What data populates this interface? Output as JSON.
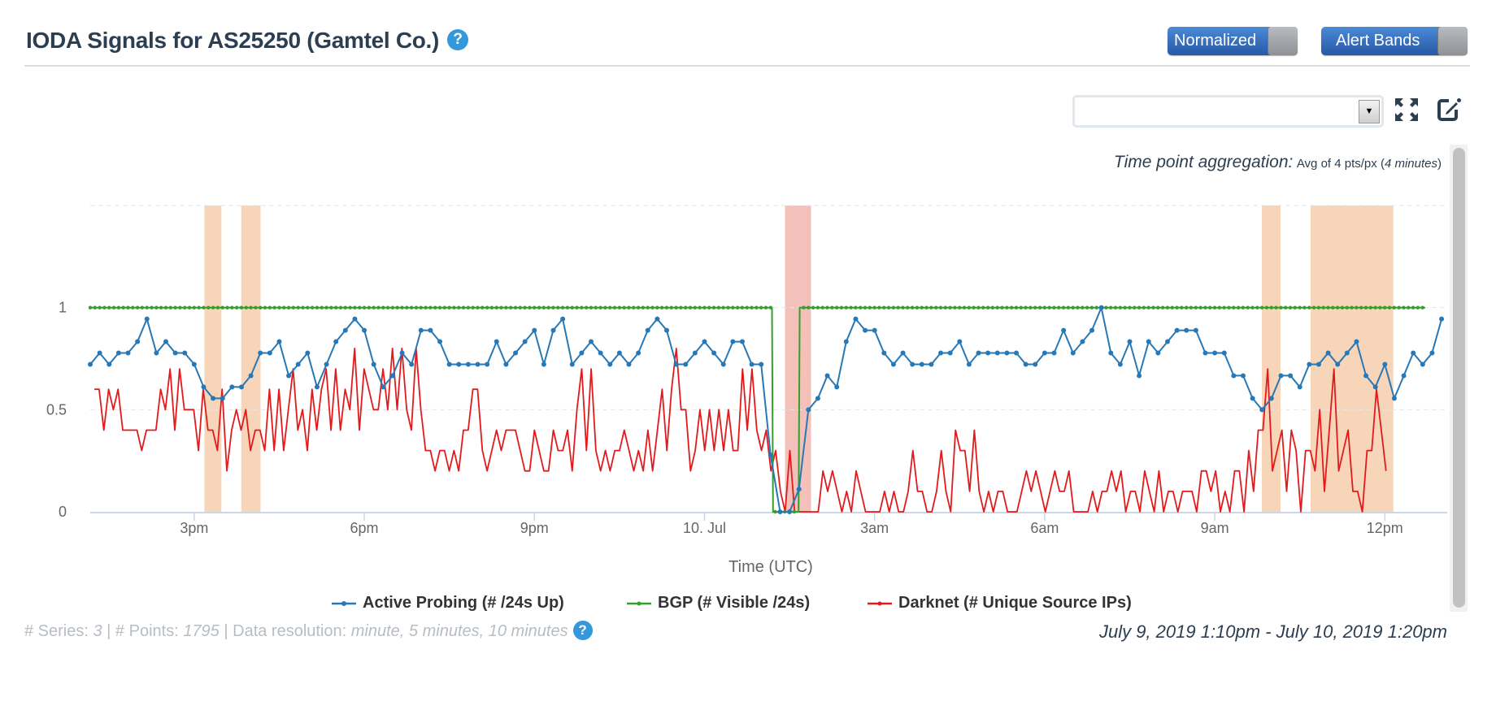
{
  "header": {
    "title": "IODA Signals for AS25250 (Gamtel Co.)",
    "help_icon": "?"
  },
  "toggles": {
    "normalized": "Normalized",
    "alert_bands": "Alert Bands"
  },
  "dropdown": {
    "value": "",
    "arrow": "▼"
  },
  "aggregation": {
    "label": "Time point aggregation:",
    "value": "Avg of 4 pts/px (",
    "minutes": "4 minutes",
    "close": ")"
  },
  "footer": {
    "series_label": "# Series: ",
    "series_count": "3",
    "sep1": " | ",
    "points_label": "# Points: ",
    "points_count": "1795",
    "sep2": " | ",
    "resolution_label": "Data resolution: ",
    "resolution_value": "minute, 5 minutes, 10 minutes",
    "date_range": "July 9, 2019 1:10pm - July 10, 2019 1:20pm"
  },
  "colors": {
    "active": "#2878b5",
    "bgp": "#33a02c",
    "darknet": "#e31a1c",
    "band_warn": "#f7d5b9",
    "band_crit": "#f4c0ba"
  },
  "chart_data": {
    "type": "line",
    "xlabel": "Time (UTC)",
    "ylabel": "",
    "x_unit": "hours since July 9, 2019 00:00 UTC",
    "xlim": [
      13.1667,
      37.1
    ],
    "ylim": [
      0,
      1.5
    ],
    "grid": true,
    "legend_position": "bottom-center",
    "yticks": [
      {
        "v": 0,
        "label": "0"
      },
      {
        "v": 0.5,
        "label": "0.5"
      },
      {
        "v": 1,
        "label": "1"
      }
    ],
    "xticks": [
      {
        "v": 15,
        "label": "3pm"
      },
      {
        "v": 18,
        "label": "6pm"
      },
      {
        "v": 21,
        "label": "9pm"
      },
      {
        "v": 24,
        "label": "10. Jul"
      },
      {
        "v": 27,
        "label": "3am"
      },
      {
        "v": 30,
        "label": "6am"
      },
      {
        "v": 33,
        "label": "9am"
      },
      {
        "v": 36,
        "label": "12pm"
      }
    ],
    "alert_bands": [
      {
        "from": 15.18,
        "to": 15.48,
        "level": "warning"
      },
      {
        "from": 15.83,
        "to": 16.17,
        "level": "warning"
      },
      {
        "from": 25.42,
        "to": 25.88,
        "level": "critical"
      },
      {
        "from": 33.83,
        "to": 34.16,
        "level": "warning"
      },
      {
        "from": 34.69,
        "to": 36.15,
        "level": "warning"
      }
    ],
    "series": [
      {
        "name": "Active Probing (# /24s Up)",
        "key": "active",
        "x_start": 13.1667,
        "x_step": 0.16667,
        "scale_divisor": 18,
        "values": [
          13,
          14,
          13,
          14,
          14,
          15,
          17,
          14,
          15,
          14,
          14,
          13,
          11,
          10,
          10,
          11,
          11,
          12,
          14,
          14,
          15,
          12,
          13,
          14,
          11,
          13,
          15,
          16,
          17,
          16,
          13,
          11,
          12,
          14,
          13,
          16,
          16,
          15,
          13,
          13,
          13,
          13,
          13,
          15,
          13,
          14,
          15,
          16,
          13,
          16,
          17,
          13,
          14,
          15,
          14,
          13,
          14,
          13,
          14,
          16,
          17,
          16,
          13,
          13,
          14,
          15,
          14,
          13,
          15,
          15,
          13,
          13,
          5,
          0,
          0,
          2,
          9,
          10,
          12,
          11,
          15,
          17,
          16,
          16,
          14,
          13,
          14,
          13,
          13,
          13,
          14,
          14,
          15,
          13,
          14,
          14,
          14,
          14,
          14,
          13,
          13,
          14,
          14,
          16,
          14,
          15,
          16,
          18,
          14,
          13,
          15,
          12,
          15,
          14,
          15,
          16,
          16,
          16,
          14,
          14,
          14,
          12,
          12,
          10,
          9,
          10,
          12,
          12,
          11,
          13,
          13,
          14,
          13,
          14,
          15,
          12,
          11,
          13,
          10,
          12,
          14,
          13,
          14,
          17
        ]
      },
      {
        "name": "BGP (# Visible /24s)",
        "key": "bgp",
        "x_step": 0.08333,
        "steps": [
          [
            13.1667,
            1
          ],
          [
            25.19,
            1
          ],
          [
            25.21,
            0
          ],
          [
            25.66,
            0
          ],
          [
            25.68,
            1
          ],
          [
            36.71,
            1
          ]
        ]
      },
      {
        "name": "Darknet (# Unique Source IPs)",
        "key": "darknet",
        "x_start": 13.24,
        "x_end": 36.02,
        "values": [
          0.6,
          0.6,
          0.4,
          0.6,
          0.5,
          0.6,
          0.4,
          0.4,
          0.4,
          0.4,
          0.3,
          0.4,
          0.4,
          0.4,
          0.6,
          0.5,
          0.7,
          0.4,
          0.7,
          0.5,
          0.5,
          0.5,
          0.3,
          0.6,
          0.4,
          0.4,
          0.3,
          0.6,
          0.2,
          0.4,
          0.5,
          0.4,
          0.5,
          0.3,
          0.4,
          0.4,
          0.3,
          0.6,
          0.3,
          0.6,
          0.3,
          0.5,
          0.7,
          0.4,
          0.5,
          0.3,
          0.6,
          0.4,
          0.6,
          0.7,
          0.4,
          0.7,
          0.4,
          0.6,
          0.5,
          0.8,
          0.4,
          0.7,
          0.6,
          0.5,
          0.5,
          0.7,
          0.5,
          0.8,
          0.5,
          0.8,
          0.5,
          0.4,
          0.8,
          0.5,
          0.3,
          0.3,
          0.2,
          0.3,
          0.3,
          0.2,
          0.3,
          0.2,
          0.4,
          0.4,
          0.6,
          0.6,
          0.3,
          0.2,
          0.3,
          0.4,
          0.3,
          0.4,
          0.4,
          0.4,
          0.3,
          0.2,
          0.2,
          0.4,
          0.3,
          0.2,
          0.2,
          0.4,
          0.3,
          0.3,
          0.4,
          0.2,
          0.5,
          0.7,
          0.3,
          0.7,
          0.3,
          0.2,
          0.3,
          0.2,
          0.3,
          0.3,
          0.4,
          0.3,
          0.2,
          0.3,
          0.2,
          0.4,
          0.2,
          0.4,
          0.6,
          0.3,
          0.6,
          0.8,
          0.5,
          0.5,
          0.2,
          0.3,
          0.5,
          0.3,
          0.5,
          0.3,
          0.5,
          0.3,
          0.5,
          0.3,
          0.3,
          0.7,
          0.4,
          0.7,
          0.4,
          0.3,
          0.4,
          0.2,
          0.3,
          0.1,
          0,
          0.3,
          0,
          0,
          0,
          0,
          0,
          0,
          0.2,
          0.1,
          0.2,
          0.1,
          0,
          0.1,
          0,
          0.2,
          0.1,
          0,
          0,
          0,
          0,
          0.1,
          0,
          0.1,
          0,
          0,
          0.1,
          0.3,
          0.1,
          0.1,
          0,
          0,
          0.1,
          0.3,
          0.1,
          0,
          0.4,
          0.3,
          0.3,
          0.1,
          0.4,
          0.1,
          0,
          0.1,
          0,
          0.1,
          0.1,
          0,
          0,
          0,
          0.1,
          0.2,
          0.1,
          0.2,
          0.1,
          0,
          0.1,
          0.2,
          0.1,
          0.1,
          0.2,
          0,
          0,
          0,
          0,
          0.1,
          0,
          0.1,
          0.1,
          0.2,
          0.1,
          0.2,
          0,
          0.1,
          0.1,
          0,
          0.2,
          0.1,
          0,
          0.2,
          0,
          0.1,
          0.1,
          0,
          0.1,
          0.1,
          0.1,
          0,
          0.2,
          0.2,
          0.1,
          0.2,
          0,
          0.1,
          0,
          0.2,
          0.2,
          0,
          0.3,
          0.1,
          0.4,
          0.4,
          0.7,
          0.2,
          0.3,
          0.4,
          0.1,
          0.4,
          0.3,
          0,
          0.3,
          0.3,
          0.2,
          0.5,
          0.1,
          0.4,
          0.7,
          0.2,
          0.3,
          0.4,
          0.1,
          0.1,
          0,
          0.3,
          0.3,
          0.6,
          0.4,
          0.2
        ]
      }
    ]
  }
}
